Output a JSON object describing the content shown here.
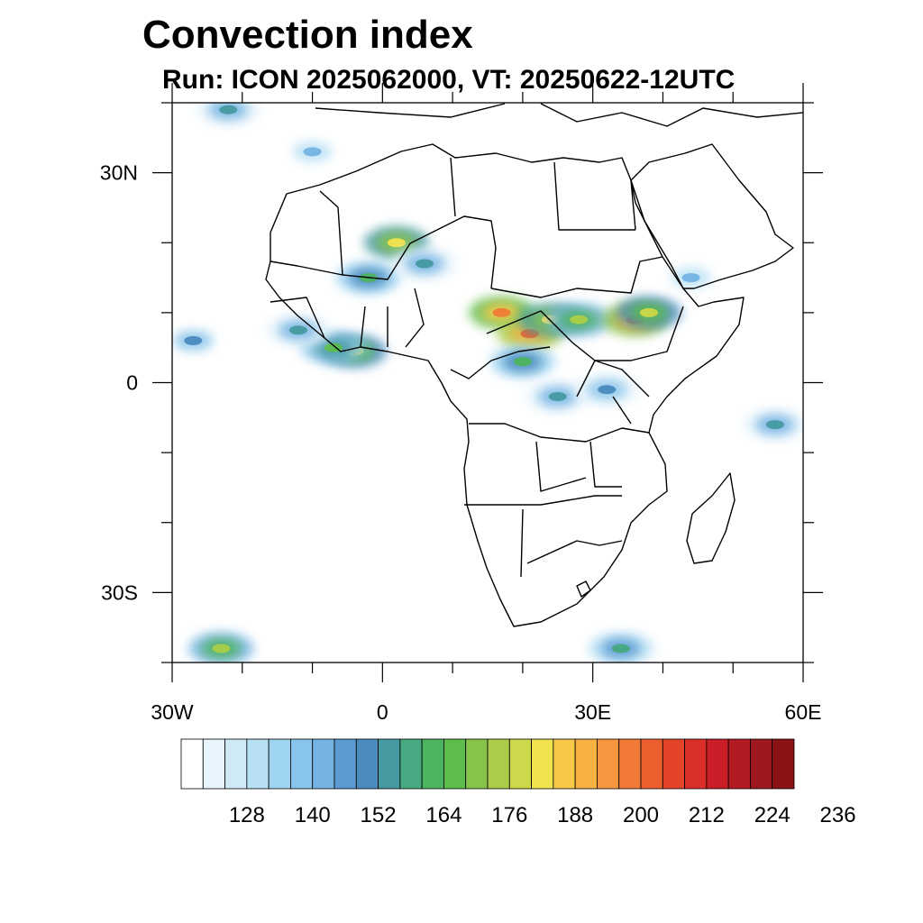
{
  "title": "Convection index",
  "subtitle": "Run: ICON 2025062000,  VT: 20250622-12UTC",
  "map": {
    "lon_range": [
      -30,
      60
    ],
    "lat_range": [
      -40,
      40
    ],
    "lat_ticks": [
      {
        "lat": 30,
        "label": "30N"
      },
      {
        "lat": 0,
        "label": "0"
      },
      {
        "lat": -30,
        "label": "30S"
      }
    ],
    "lon_ticks": [
      {
        "lon": -30,
        "label": "30W"
      },
      {
        "lon": 0,
        "label": "0"
      },
      {
        "lon": 30,
        "label": "30E"
      },
      {
        "lon": 60,
        "label": "60E"
      }
    ]
  },
  "colorbar": {
    "colors": [
      "#ffffff",
      "#e8f4fb",
      "#cfe9f7",
      "#b8e0f4",
      "#9fd4f1",
      "#89c4ea",
      "#74b3e2",
      "#5b9bd2",
      "#4b8bbe",
      "#469aa1",
      "#47a881",
      "#4db35e",
      "#5cbc4c",
      "#86c34a",
      "#abcd4a",
      "#cfd84a",
      "#f1e350",
      "#f8c948",
      "#f7b143",
      "#f6963e",
      "#f17a36",
      "#eb5f2e",
      "#e44429",
      "#db2f2a",
      "#c91e27",
      "#b31b23",
      "#9d191f",
      "#8a1414"
    ],
    "labels": [
      "128",
      "140",
      "152",
      "164",
      "176",
      "188",
      "200",
      "212",
      "224",
      "236"
    ]
  },
  "convection": [
    {
      "lon": -4,
      "lat": 4.5,
      "value": 176
    },
    {
      "lon": -7,
      "lat": 5,
      "value": 164
    },
    {
      "lon": -12,
      "lat": 7.5,
      "value": 150
    },
    {
      "lon": -27,
      "lat": 6,
      "value": 146
    },
    {
      "lon": 2,
      "lat": 20,
      "value": 180
    },
    {
      "lon": -2,
      "lat": 15,
      "value": 160
    },
    {
      "lon": 6,
      "lat": 17,
      "value": 150
    },
    {
      "lon": 17,
      "lat": 10,
      "value": 194
    },
    {
      "lon": 21,
      "lat": 7,
      "value": 200
    },
    {
      "lon": 24,
      "lat": 9,
      "value": 180
    },
    {
      "lon": 28,
      "lat": 9,
      "value": 170
    },
    {
      "lon": 36,
      "lat": 9,
      "value": 198
    },
    {
      "lon": 38,
      "lat": 10,
      "value": 176
    },
    {
      "lon": 20,
      "lat": 3,
      "value": 160
    },
    {
      "lon": 25,
      "lat": -2,
      "value": 150
    },
    {
      "lon": 32,
      "lat": -1,
      "value": 148
    },
    {
      "lon": 56,
      "lat": -6,
      "value": 150
    },
    {
      "lon": 34,
      "lat": -38,
      "value": 156
    },
    {
      "lon": -23,
      "lat": -38,
      "value": 170
    },
    {
      "lon": -22,
      "lat": 39,
      "value": 150
    },
    {
      "lon": -10,
      "lat": 33,
      "value": 138
    },
    {
      "lon": 44,
      "lat": 15,
      "value": 140
    }
  ]
}
